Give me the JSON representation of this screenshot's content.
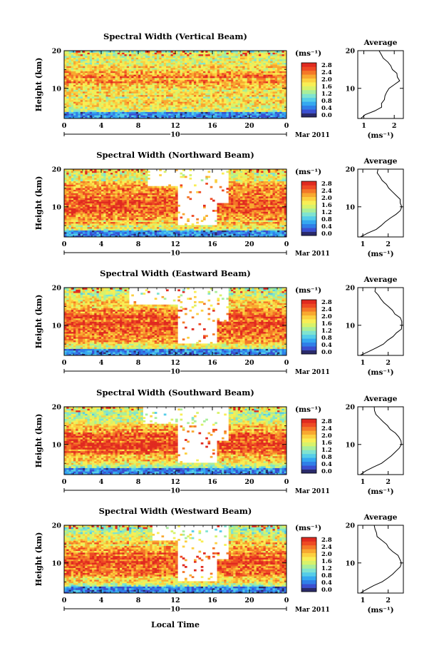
{
  "figure": {
    "xlabel": "Local Time",
    "date_label": "Mar 2011",
    "day_label": "10",
    "colorbar_unit": "(ms⁻¹)",
    "average_title": "Average",
    "average_unit": "(ms⁻¹)",
    "colormap_colors": [
      "#2a2a6a",
      "#3a4fd0",
      "#2f7fe8",
      "#35a8f0",
      "#55cde8",
      "#7fe3d0",
      "#a9ee9a",
      "#d8f26a",
      "#f8ee55",
      "#fcd040",
      "#f8a830",
      "#f47828",
      "#ee4a24",
      "#e02a20"
    ]
  },
  "chart_data": [
    {
      "type": "heatmap",
      "title": "Spectral Width (Vertical Beam)",
      "ylabel": "Height (km)",
      "xlabel": "Local Time",
      "x_ticks": [
        "0",
        "4",
        "8",
        "12",
        "16",
        "20",
        "0"
      ],
      "y_ticks": [
        "10",
        "20"
      ],
      "xlim": [
        0,
        24
      ],
      "ylim": [
        2,
        20
      ],
      "colorbar_ticks": [
        "2.8",
        "2.4",
        "2.0",
        "1.6",
        "1.2",
        "0.8",
        "0.4",
        "0.0"
      ],
      "clim": [
        0,
        2.8
      ],
      "missing_data": [],
      "profile": {
        "x_ticks": [
          "1",
          "2"
        ],
        "xlim": [
          0.8,
          2.3
        ],
        "heights": [
          2,
          3,
          4,
          5,
          6,
          7,
          8,
          9,
          10,
          11,
          12,
          13,
          14,
          15,
          16,
          17,
          18,
          19,
          20
        ],
        "values": [
          0.9,
          1.05,
          1.35,
          1.55,
          1.62,
          1.65,
          1.7,
          1.75,
          1.85,
          2.0,
          2.15,
          2.1,
          2.05,
          1.95,
          1.85,
          1.75,
          1.65,
          1.55,
          1.5
        ]
      }
    },
    {
      "type": "heatmap",
      "title": "Spectral Width (Northward Beam)",
      "ylabel": "Height (km)",
      "xlabel": "Local Time",
      "x_ticks": [
        "0",
        "4",
        "8",
        "12",
        "16",
        "20",
        "0"
      ],
      "y_ticks": [
        "10",
        "20"
      ],
      "xlim": [
        0,
        24
      ],
      "ylim": [
        2,
        20
      ],
      "colorbar_ticks": [
        "2.8",
        "2.4",
        "2.0",
        "1.6",
        "1.2",
        "0.8",
        "0.4",
        "0.0"
      ],
      "clim": [
        0,
        2.8
      ],
      "missing_data": [
        {
          "t0": 12.3,
          "t1": 16.6,
          "h0": 5.0
        },
        {
          "t0": 16.6,
          "t1": 17.8,
          "h0": 11.0
        },
        {
          "t0": 9.0,
          "t1": 12.3,
          "h0": 15.5
        }
      ],
      "profile": {
        "x_ticks": [
          "1",
          "2"
        ],
        "xlim": [
          0.8,
          2.6
        ],
        "heights": [
          2,
          3,
          4,
          5,
          6,
          7,
          8,
          9,
          10,
          11,
          12,
          13,
          14,
          15,
          16,
          17,
          18,
          19,
          20
        ],
        "values": [
          0.9,
          1.2,
          1.5,
          1.75,
          1.9,
          2.1,
          2.3,
          2.45,
          2.5,
          2.5,
          2.45,
          2.35,
          2.2,
          2.05,
          1.9,
          1.8,
          1.7,
          1.6,
          1.6
        ]
      }
    },
    {
      "type": "heatmap",
      "title": "Spectral Width (Eastward Beam)",
      "ylabel": "Height (km)",
      "xlabel": "Local Time",
      "x_ticks": [
        "0",
        "4",
        "8",
        "12",
        "16",
        "20",
        "0"
      ],
      "y_ticks": [
        "10",
        "20"
      ],
      "xlim": [
        0,
        24
      ],
      "ylim": [
        2,
        20
      ],
      "colorbar_ticks": [
        "2.8",
        "2.4",
        "2.0",
        "1.6",
        "1.2",
        "0.8",
        "0.4",
        "0.0"
      ],
      "clim": [
        0,
        2.8
      ],
      "missing_data": [
        {
          "t0": 12.3,
          "t1": 16.6,
          "h0": 5.0
        },
        {
          "t0": 16.6,
          "t1": 17.8,
          "h0": 11.0
        },
        {
          "t0": 7.0,
          "t1": 12.3,
          "h0": 15.5
        }
      ],
      "profile": {
        "x_ticks": [
          "1",
          "2"
        ],
        "xlim": [
          0.8,
          2.6
        ],
        "heights": [
          2,
          3,
          4,
          5,
          6,
          7,
          8,
          9,
          10,
          11,
          12,
          13,
          14,
          15,
          16,
          17,
          18,
          19,
          20
        ],
        "values": [
          0.9,
          1.2,
          1.5,
          1.8,
          2.0,
          2.2,
          2.35,
          2.5,
          2.55,
          2.5,
          2.45,
          2.3,
          2.15,
          2.0,
          1.85,
          1.7,
          1.6,
          1.5,
          1.5
        ]
      }
    },
    {
      "type": "heatmap",
      "title": "Spectral Width (Southward Beam)",
      "ylabel": "Height (km)",
      "xlabel": "Local Time",
      "x_ticks": [
        "0",
        "4",
        "8",
        "12",
        "16",
        "20",
        "0"
      ],
      "y_ticks": [
        "10",
        "20"
      ],
      "xlim": [
        0,
        24
      ],
      "ylim": [
        2,
        20
      ],
      "colorbar_ticks": [
        "2.8",
        "2.4",
        "2.0",
        "1.6",
        "1.2",
        "0.8",
        "0.4",
        "0.0"
      ],
      "clim": [
        0,
        2.8
      ],
      "missing_data": [
        {
          "t0": 12.3,
          "t1": 16.6,
          "h0": 5.0
        },
        {
          "t0": 16.6,
          "t1": 17.8,
          "h0": 11.0
        },
        {
          "t0": 8.5,
          "t1": 12.3,
          "h0": 15.5
        }
      ],
      "profile": {
        "x_ticks": [
          "1",
          "2"
        ],
        "xlim": [
          0.8,
          2.6
        ],
        "heights": [
          2,
          3,
          4,
          5,
          6,
          7,
          8,
          9,
          10,
          11,
          12,
          13,
          14,
          15,
          16,
          17,
          18,
          19,
          20
        ],
        "values": [
          0.9,
          1.15,
          1.45,
          1.75,
          1.95,
          2.15,
          2.3,
          2.45,
          2.5,
          2.5,
          2.4,
          2.25,
          2.1,
          1.95,
          1.8,
          1.65,
          1.55,
          1.45,
          1.45
        ]
      }
    },
    {
      "type": "heatmap",
      "title": "Spectral Width (Westward Beam)",
      "ylabel": "Height (km)",
      "xlabel": "Local Time",
      "x_ticks": [
        "0",
        "4",
        "8",
        "12",
        "16",
        "20",
        "0"
      ],
      "y_ticks": [
        "10",
        "20"
      ],
      "xlim": [
        0,
        24
      ],
      "ylim": [
        2,
        20
      ],
      "colorbar_ticks": [
        "2.8",
        "2.4",
        "2.0",
        "1.6",
        "1.2",
        "0.8",
        "0.4",
        "0.0"
      ],
      "clim": [
        0,
        2.8
      ],
      "missing_data": [
        {
          "t0": 12.3,
          "t1": 16.6,
          "h0": 5.0
        },
        {
          "t0": 16.6,
          "t1": 17.8,
          "h0": 11.0
        },
        {
          "t0": 9.5,
          "t1": 12.3,
          "h0": 16.0
        }
      ],
      "profile": {
        "x_ticks": [
          "1",
          "2"
        ],
        "xlim": [
          0.8,
          2.6
        ],
        "heights": [
          2,
          3,
          4,
          5,
          6,
          7,
          8,
          9,
          10,
          11,
          12,
          13,
          14,
          15,
          16,
          17,
          18,
          19,
          20
        ],
        "values": [
          0.9,
          1.15,
          1.45,
          1.75,
          1.95,
          2.15,
          2.3,
          2.45,
          2.5,
          2.45,
          2.35,
          2.2,
          2.05,
          1.9,
          1.75,
          1.6,
          1.5,
          1.45,
          1.45
        ]
      }
    }
  ]
}
